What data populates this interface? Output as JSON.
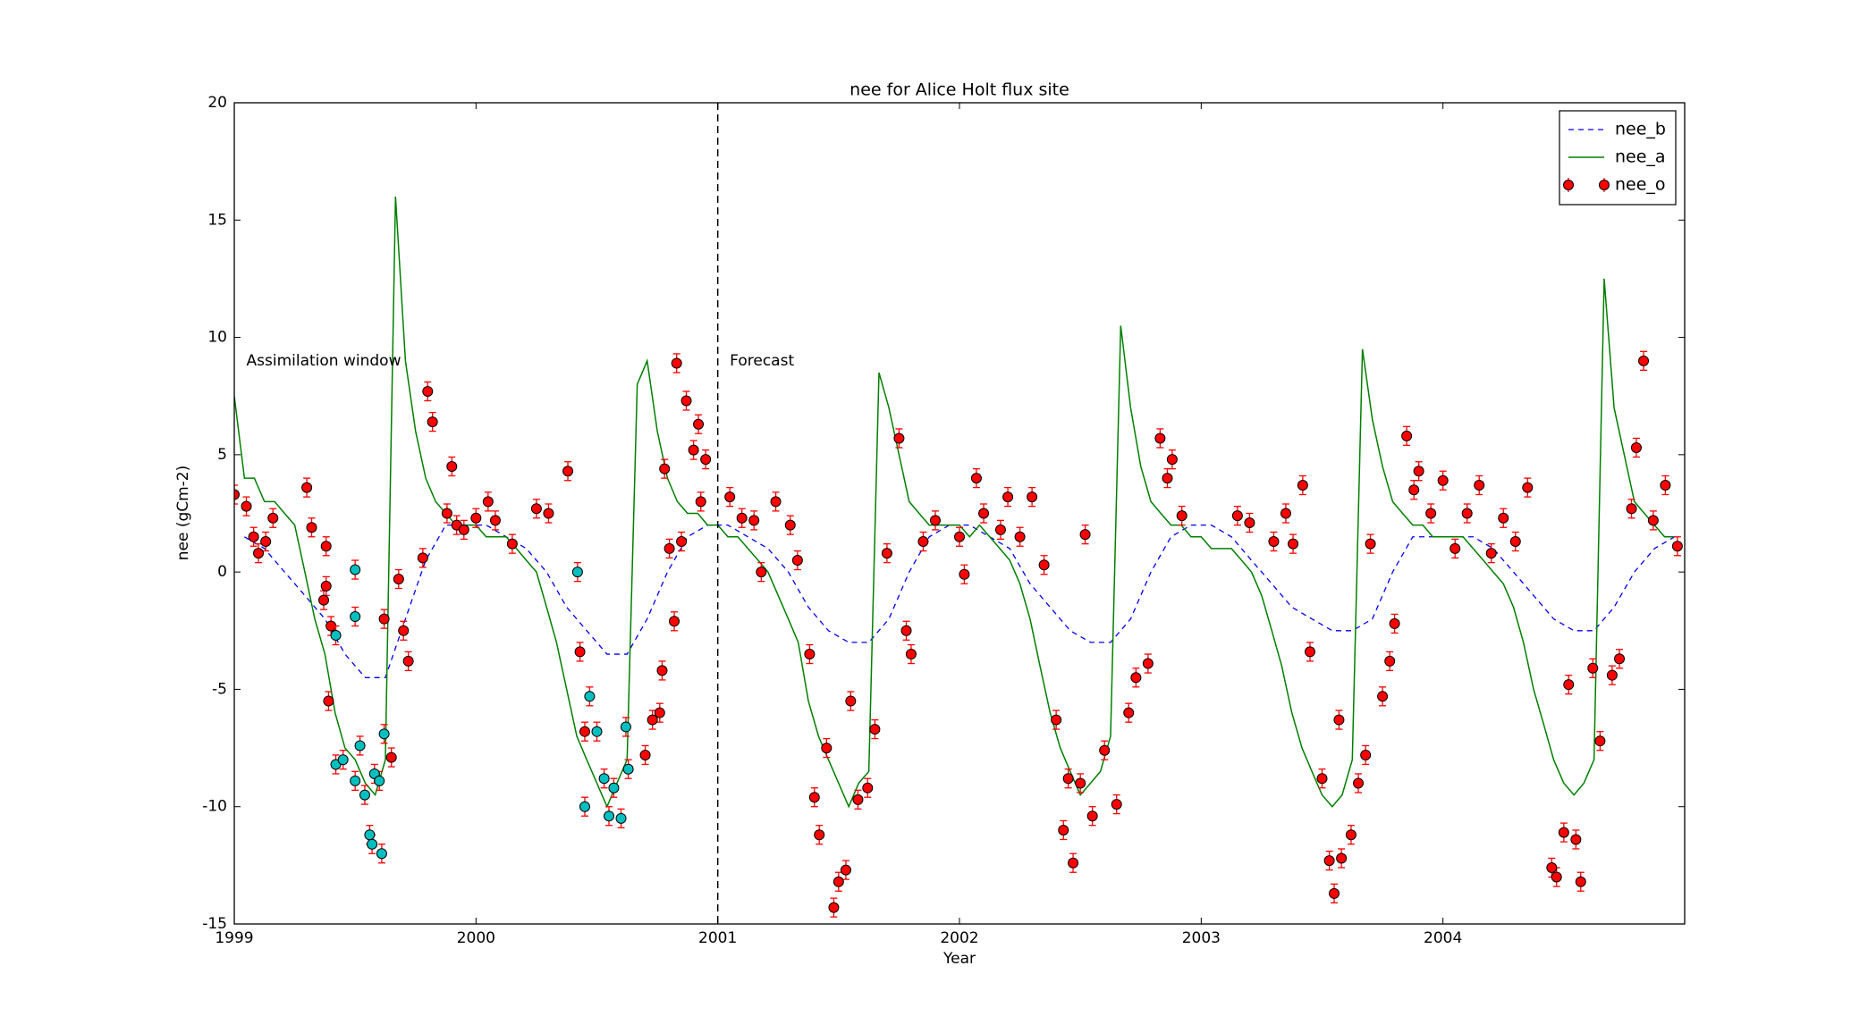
{
  "chart_data": {
    "type": "line",
    "title": "nee for Alice Holt flux site",
    "xlabel": "Year",
    "ylabel": "nee (gCm-2)",
    "xlim": [
      1999,
      2005
    ],
    "xticks": [
      1999,
      2000,
      2001,
      2002,
      2003,
      2004
    ],
    "ylim": [
      -15,
      20
    ],
    "yticks": [
      -15,
      -10,
      -5,
      0,
      5,
      10,
      15,
      20
    ],
    "vline": 2001,
    "legend": "upper right",
    "yerr": 0.4,
    "annotations": [
      {
        "text": "Assimilation window",
        "x": 1999.05,
        "y": 9
      },
      {
        "text": "Forecast",
        "x": 2001.05,
        "y": 9
      }
    ],
    "series": [
      {
        "name": "nee_b",
        "color": "#0000ff",
        "linestyle": "dashed",
        "x": [
          1999.042,
          1999.125,
          1999.208,
          1999.292,
          1999.375,
          1999.458,
          1999.542,
          1999.625,
          1999.708,
          1999.792,
          1999.875,
          1999.958,
          2000.042,
          2000.125,
          2000.208,
          2000.292,
          2000.375,
          2000.458,
          2000.542,
          2000.625,
          2000.708,
          2000.792,
          2000.875,
          2000.958,
          2001.042,
          2001.125,
          2001.208,
          2001.292,
          2001.375,
          2001.458,
          2001.542,
          2001.625,
          2001.708,
          2001.792,
          2001.875,
          2001.958,
          2002.042,
          2002.125,
          2002.208,
          2002.292,
          2002.375,
          2002.458,
          2002.542,
          2002.625,
          2002.708,
          2002.792,
          2002.875,
          2002.958,
          2003.042,
          2003.125,
          2003.208,
          2003.292,
          2003.375,
          2003.458,
          2003.542,
          2003.625,
          2003.708,
          2003.792,
          2003.875,
          2003.958,
          2004.042,
          2004.125,
          2004.208,
          2004.292,
          2004.375,
          2004.458,
          2004.542,
          2004.625,
          2004.708,
          2004.792,
          2004.875,
          2004.958
        ],
        "values": [
          1.5,
          1,
          0,
          -1,
          -2,
          -3.5,
          -4.5,
          -4.5,
          -2,
          0.5,
          2,
          2,
          2,
          1.5,
          1,
          0,
          -1.5,
          -2.5,
          -3.5,
          -3.5,
          -2,
          0,
          1.5,
          2,
          2,
          1.5,
          1,
          0,
          -1.5,
          -2.5,
          -3,
          -3,
          -2,
          0,
          1.5,
          2,
          2,
          1.5,
          1,
          -0.5,
          -1.5,
          -2.5,
          -3,
          -3,
          -2,
          0,
          1.5,
          2,
          2,
          1.5,
          0.5,
          -0.5,
          -1.5,
          -2,
          -2.5,
          -2.5,
          -2,
          0,
          1.5,
          1.5,
          1.5,
          1.5,
          1,
          0,
          -1,
          -2,
          -2.5,
          -2.5,
          -1.5,
          0,
          1,
          1.5
        ]
      },
      {
        "name": "nee_a",
        "color": "#008000",
        "linestyle": "solid",
        "x": [
          1999,
          1999.042,
          1999.083,
          1999.125,
          1999.167,
          1999.208,
          1999.25,
          1999.292,
          1999.333,
          1999.375,
          1999.417,
          1999.458,
          1999.5,
          1999.542,
          1999.583,
          1999.625,
          1999.667,
          1999.708,
          1999.75,
          1999.792,
          1999.833,
          1999.875,
          1999.917,
          1999.958,
          2000,
          2000.042,
          2000.083,
          2000.125,
          2000.167,
          2000.208,
          2000.25,
          2000.292,
          2000.333,
          2000.375,
          2000.417,
          2000.458,
          2000.5,
          2000.542,
          2000.583,
          2000.625,
          2000.667,
          2000.708,
          2000.75,
          2000.792,
          2000.833,
          2000.875,
          2000.917,
          2000.958,
          2001,
          2001.042,
          2001.083,
          2001.125,
          2001.167,
          2001.208,
          2001.25,
          2001.292,
          2001.333,
          2001.375,
          2001.417,
          2001.458,
          2001.5,
          2001.542,
          2001.583,
          2001.625,
          2001.667,
          2001.708,
          2001.75,
          2001.792,
          2001.833,
          2001.875,
          2001.917,
          2001.958,
          2002,
          2002.042,
          2002.083,
          2002.125,
          2002.167,
          2002.208,
          2002.25,
          2002.292,
          2002.333,
          2002.375,
          2002.417,
          2002.458,
          2002.5,
          2002.542,
          2002.583,
          2002.625,
          2002.667,
          2002.708,
          2002.75,
          2002.792,
          2002.833,
          2002.875,
          2002.917,
          2002.958,
          2003,
          2003.042,
          2003.083,
          2003.125,
          2003.167,
          2003.208,
          2003.25,
          2003.292,
          2003.333,
          2003.375,
          2003.417,
          2003.458,
          2003.5,
          2003.542,
          2003.583,
          2003.625,
          2003.667,
          2003.708,
          2003.75,
          2003.792,
          2003.833,
          2003.875,
          2003.917,
          2003.958,
          2004,
          2004.042,
          2004.083,
          2004.125,
          2004.167,
          2004.208,
          2004.25,
          2004.292,
          2004.333,
          2004.375,
          2004.417,
          2004.458,
          2004.5,
          2004.542,
          2004.583,
          2004.625,
          2004.667,
          2004.708,
          2004.75,
          2004.792,
          2004.833,
          2004.875,
          2004.917,
          2004.958
        ],
        "values": [
          7.5,
          4,
          4,
          3,
          3,
          2.5,
          2,
          0,
          -2,
          -3.5,
          -6,
          -7.5,
          -8,
          -9,
          -9.5,
          -8,
          16,
          9,
          6,
          4,
          3,
          2.5,
          2,
          2,
          2,
          1.5,
          1.5,
          1.5,
          1,
          0.5,
          0,
          -1.5,
          -3,
          -5,
          -7,
          -8,
          -9,
          -10,
          -9,
          -8,
          8,
          9,
          6,
          4,
          3,
          2.5,
          2.5,
          2,
          2,
          1.5,
          1.5,
          1,
          0.5,
          0,
          -1,
          -2,
          -3,
          -5.5,
          -7,
          -8,
          -9,
          -10,
          -9,
          -8.5,
          8.5,
          7,
          5,
          3,
          2.5,
          2,
          2,
          2,
          2,
          1.5,
          2,
          1.5,
          1,
          0.5,
          -0.5,
          -2,
          -4,
          -6,
          -7.5,
          -8.5,
          -9.5,
          -9,
          -8.5,
          -7,
          10.5,
          7,
          4.5,
          3,
          2.5,
          2,
          2,
          1.5,
          1.5,
          1,
          1,
          1,
          0.5,
          0,
          -1,
          -2.5,
          -4,
          -6,
          -7.5,
          -8.5,
          -9.5,
          -10,
          -9.5,
          -8,
          9.5,
          6.5,
          4.5,
          3,
          2.5,
          2,
          2,
          1.5,
          1.5,
          1.5,
          1.5,
          1,
          0.5,
          0,
          -0.5,
          -1.5,
          -3,
          -5,
          -6.5,
          -8,
          -9,
          -9.5,
          -9,
          -8,
          12.5,
          7,
          5,
          3,
          2.5,
          2,
          1.5,
          1.5
        ]
      },
      {
        "name": "nee_o",
        "color": "#ff0000",
        "linestyle": "errorbar",
        "x": [
          1999.0,
          1999.05,
          1999.08,
          1999.1,
          1999.13,
          1999.16,
          1999.3,
          1999.32,
          1999.37,
          1999.38,
          1999.4,
          1999.38,
          1999.39,
          1999.62,
          1999.65,
          1999.68,
          1999.7,
          1999.72,
          1999.78,
          1999.8,
          1999.82,
          1999.88,
          1999.9,
          1999.92,
          1999.95,
          2000.0,
          2000.05,
          2000.08,
          2000.15,
          2000.25,
          2000.3,
          2000.38,
          2000.43,
          2000.45,
          2000.7,
          2000.73,
          2000.76,
          2000.78,
          2000.77,
          2000.8,
          2000.82,
          2000.83,
          2000.85,
          2000.87,
          2000.9,
          2000.92,
          2000.95,
          2000.93,
          2001.05,
          2001.1,
          2001.15,
          2001.18,
          2001.24,
          2001.3,
          2001.33,
          2001.38,
          2001.4,
          2001.42,
          2001.45,
          2001.48,
          2001.5,
          2001.53,
          2001.55,
          2001.58,
          2001.62,
          2001.65,
          2001.7,
          2001.75,
          2001.78,
          2001.8,
          2001.85,
          2001.9,
          2002.0,
          2002.02,
          2002.07,
          2002.1,
          2002.17,
          2002.2,
          2002.25,
          2002.3,
          2002.35,
          2002.4,
          2002.43,
          2002.45,
          2002.47,
          2002.5,
          2002.52,
          2002.55,
          2002.6,
          2002.65,
          2002.7,
          2002.73,
          2002.78,
          2002.83,
          2002.86,
          2002.88,
          2002.92,
          2003.15,
          2003.2,
          2003.3,
          2003.35,
          2003.38,
          2003.42,
          2003.45,
          2003.5,
          2003.53,
          2003.55,
          2003.57,
          2003.58,
          2003.62,
          2003.65,
          2003.68,
          2003.7,
          2003.75,
          2003.78,
          2003.8,
          2003.85,
          2003.88,
          2003.9,
          2003.95,
          2004.0,
          2004.05,
          2004.1,
          2004.15,
          2004.2,
          2004.25,
          2004.3,
          2004.35,
          2004.45,
          2004.47,
          2004.5,
          2004.52,
          2004.55,
          2004.57,
          2004.62,
          2004.65,
          2004.7,
          2004.73,
          2004.78,
          2004.8,
          2004.83,
          2004.87,
          2004.92,
          2004.97
        ],
        "values": [
          3.3,
          2.8,
          1.5,
          0.8,
          1.3,
          2.3,
          3.6,
          1.9,
          -1.2,
          1.1,
          -2.3,
          -0.6,
          -5.5,
          -2,
          -7.9,
          -0.3,
          -2.5,
          -3.8,
          0.6,
          7.7,
          6.4,
          2.5,
          4.5,
          2,
          1.8,
          2.3,
          3,
          2.2,
          1.2,
          2.7,
          2.5,
          4.3,
          -3.4,
          -6.8,
          -7.8,
          -6.3,
          -6,
          4.4,
          -4.2,
          1,
          -2.1,
          8.9,
          1.3,
          7.3,
          5.2,
          6.3,
          4.8,
          3,
          3.2,
          2.3,
          2.2,
          0,
          3,
          2,
          0.5,
          -3.5,
          -9.6,
          -11.2,
          -7.5,
          -14.3,
          -13.2,
          -12.7,
          -5.5,
          -9.7,
          -9.2,
          -6.7,
          0.8,
          5.7,
          -2.5,
          -3.5,
          1.3,
          2.2,
          1.5,
          -0.1,
          4,
          2.5,
          1.8,
          3.2,
          1.5,
          3.2,
          0.3,
          -6.3,
          -11,
          -8.8,
          -12.4,
          -9,
          1.6,
          -10.4,
          -7.6,
          -9.9,
          -6,
          -4.5,
          -3.9,
          5.7,
          4,
          4.8,
          2.4,
          2.4,
          2.1,
          1.3,
          2.5,
          1.2,
          3.7,
          -3.4,
          -8.8,
          -12.3,
          -13.7,
          -6.3,
          -12.2,
          -11.2,
          -9,
          -7.8,
          1.2,
          -5.3,
          -3.8,
          -2.2,
          5.8,
          3.5,
          4.3,
          2.5,
          3.9,
          1,
          2.5,
          3.7,
          0.8,
          2.3,
          1.3,
          3.6,
          -12.6,
          -13,
          -11.1,
          -4.8,
          -11.4,
          -13.2,
          -4.1,
          -7.2,
          -4.4,
          -3.7,
          2.7,
          5.3,
          9,
          2.2,
          3.7,
          1.1
        ]
      },
      {
        "color": "#00bfbf",
        "linestyle": "errorbar",
        "x": [
          1999.42,
          1999.45,
          1999.5,
          1999.5,
          1999.52,
          1999.54,
          1999.56,
          1999.57,
          1999.58,
          1999.6,
          1999.61,
          1999.62,
          1999.5,
          1999.42,
          2000.42,
          2000.45,
          2000.47,
          2000.5,
          2000.53,
          2000.55,
          2000.57,
          2000.6,
          2000.62,
          2000.63
        ],
        "values": [
          -8.2,
          -8,
          0.1,
          -8.9,
          -7.4,
          -9.5,
          -11.2,
          -11.6,
          -8.6,
          -8.9,
          -12,
          -6.9,
          -1.9,
          -2.7,
          0,
          -10,
          -5.3,
          -6.8,
          -8.8,
          -10.4,
          -9.2,
          -10.5,
          -6.6,
          -8.4
        ]
      }
    ]
  }
}
